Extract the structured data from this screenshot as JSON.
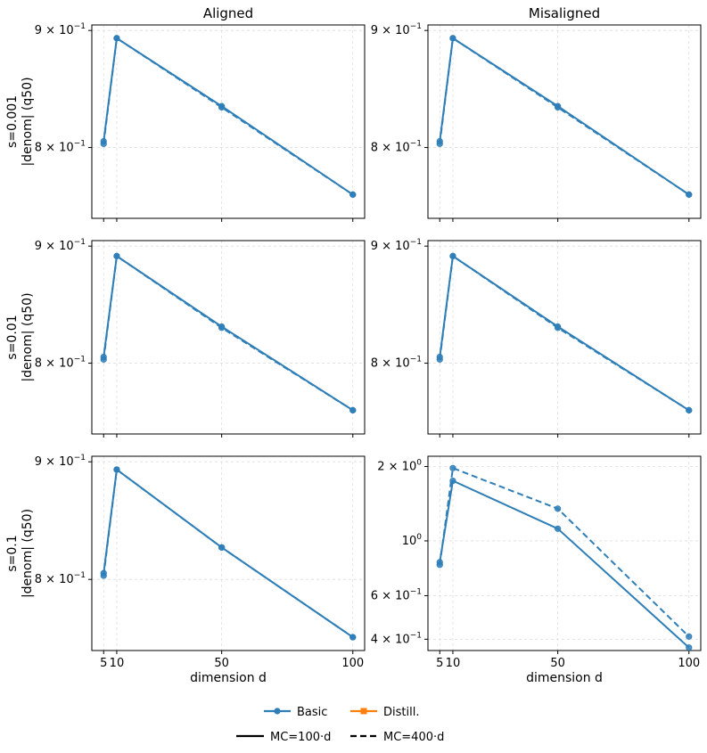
{
  "figure": {
    "legend": {
      "basic_label": "Basic",
      "distill_label": "Distill.",
      "mc100_label": "MC=100·d",
      "mc400_label": "MC=400·d"
    },
    "colors": {
      "basic": "#2e7eb8",
      "distill": "#ff7f0e",
      "axis": "#000000",
      "grid": "#dddddd"
    }
  },
  "chart_data": [
    {
      "type": "line",
      "title": "Aligned",
      "ylabel": "s=0.001\n|denom| (q50)",
      "xlabel": "",
      "yscale": "log",
      "ylim": [
        0.745,
        0.905
      ],
      "x": [
        5,
        10,
        50,
        100
      ],
      "xticks": [
        "5",
        "10",
        "50",
        "100"
      ],
      "yticks": [
        {
          "value": 0.9,
          "label": "9 × 10⁻¹"
        },
        {
          "value": 0.8,
          "label": "8 × 10⁻¹"
        }
      ],
      "series": [
        {
          "name": "Basic MC=100·d",
          "style": "solid",
          "values": [
            0.805,
            0.893,
            0.834,
            0.763
          ]
        },
        {
          "name": "Basic MC=400·d",
          "style": "dashed",
          "values": [
            0.803,
            0.893,
            0.833,
            0.763
          ]
        }
      ]
    },
    {
      "type": "line",
      "title": "Misaligned",
      "ylabel": "",
      "xlabel": "",
      "yscale": "log",
      "ylim": [
        0.745,
        0.905
      ],
      "x": [
        5,
        10,
        50,
        100
      ],
      "xticks": [
        "5",
        "10",
        "50",
        "100"
      ],
      "yticks": [
        {
          "value": 0.9,
          "label": "9 × 10⁻¹"
        },
        {
          "value": 0.8,
          "label": "8 × 10⁻¹"
        }
      ],
      "series": [
        {
          "name": "Basic MC=100·d",
          "style": "solid",
          "values": [
            0.805,
            0.893,
            0.834,
            0.763
          ]
        },
        {
          "name": "Basic MC=400·d",
          "style": "dashed",
          "values": [
            0.803,
            0.893,
            0.833,
            0.763
          ]
        }
      ]
    },
    {
      "type": "line",
      "title": "",
      "ylabel": "s=0.01\n|denom| (q50)",
      "xlabel": "",
      "yscale": "log",
      "ylim": [
        0.745,
        0.905
      ],
      "x": [
        5,
        10,
        50,
        100
      ],
      "xticks": [
        "5",
        "10",
        "50",
        "100"
      ],
      "yticks": [
        {
          "value": 0.9,
          "label": "9 × 10⁻¹"
        },
        {
          "value": 0.8,
          "label": "8 × 10⁻¹"
        }
      ],
      "series": [
        {
          "name": "Basic MC=100·d",
          "style": "solid",
          "values": [
            0.805,
            0.891,
            0.83,
            0.763
          ]
        },
        {
          "name": "Basic MC=400·d",
          "style": "dashed",
          "values": [
            0.803,
            0.891,
            0.829,
            0.763
          ]
        }
      ]
    },
    {
      "type": "line",
      "title": "",
      "ylabel": "",
      "xlabel": "",
      "yscale": "log",
      "ylim": [
        0.745,
        0.905
      ],
      "x": [
        5,
        10,
        50,
        100
      ],
      "xticks": [
        "5",
        "10",
        "50",
        "100"
      ],
      "yticks": [
        {
          "value": 0.9,
          "label": "9 × 10⁻¹"
        },
        {
          "value": 0.8,
          "label": "8 × 10⁻¹"
        }
      ],
      "series": [
        {
          "name": "Basic MC=100·d",
          "style": "solid",
          "values": [
            0.805,
            0.891,
            0.83,
            0.763
          ]
        },
        {
          "name": "Basic MC=400·d",
          "style": "dashed",
          "values": [
            0.803,
            0.891,
            0.829,
            0.763
          ]
        }
      ]
    },
    {
      "type": "line",
      "title": "",
      "ylabel": "s=0.1\n|denom| (q50)",
      "xlabel": "dimension d",
      "yscale": "log",
      "ylim": [
        0.745,
        0.905
      ],
      "x": [
        5,
        10,
        50,
        100
      ],
      "xticks": [
        "5",
        "10",
        "50",
        "100"
      ],
      "yticks": [
        {
          "value": 0.9,
          "label": "9 × 10⁻¹"
        },
        {
          "value": 0.8,
          "label": "8 × 10⁻¹"
        }
      ],
      "series": [
        {
          "name": "Basic MC=100·d",
          "style": "solid",
          "values": [
            0.805,
            0.893,
            0.826,
            0.755
          ]
        },
        {
          "name": "Basic MC=400·d",
          "style": "dashed",
          "values": [
            0.803,
            0.893,
            0.826,
            0.755
          ]
        }
      ]
    },
    {
      "type": "line",
      "title": "",
      "ylabel": "",
      "xlabel": "dimension d",
      "yscale": "log",
      "ylim": [
        0.36,
        2.2
      ],
      "x": [
        5,
        10,
        50,
        100
      ],
      "xticks": [
        "5",
        "10",
        "50",
        "100"
      ],
      "yticks": [
        {
          "value": 2.0,
          "label": "2 × 10⁰"
        },
        {
          "value": 1.0,
          "label": "10⁰"
        },
        {
          "value": 0.6,
          "label": "6 × 10⁻¹"
        },
        {
          "value": 0.4,
          "label": "4 × 10⁻¹"
        }
      ],
      "series": [
        {
          "name": "Basic MC=100·d",
          "style": "solid",
          "values": [
            0.82,
            1.75,
            1.12,
            0.37
          ]
        },
        {
          "name": "Basic MC=400·d",
          "style": "dashed",
          "values": [
            0.8,
            1.97,
            1.35,
            0.41
          ]
        }
      ]
    }
  ]
}
